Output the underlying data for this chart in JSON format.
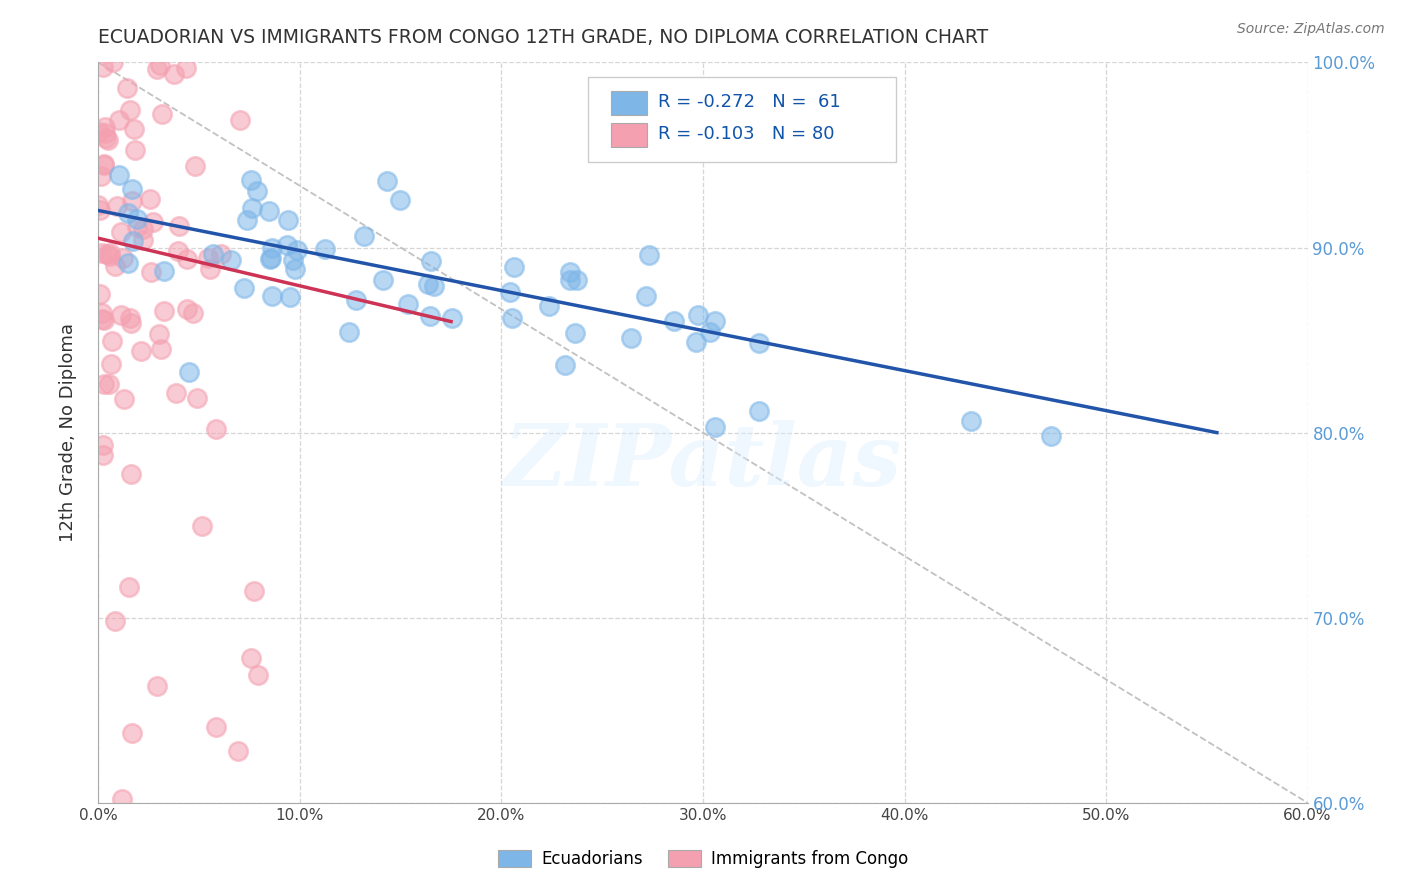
{
  "title": "ECUADORIAN VS IMMIGRANTS FROM CONGO 12TH GRADE, NO DIPLOMA CORRELATION CHART",
  "source": "Source: ZipAtlas.com",
  "ylabel": "12th Grade, No Diploma",
  "xlabel_blue": "Ecuadorians",
  "xlabel_pink": "Immigrants from Congo",
  "xlim": [
    0.0,
    0.6
  ],
  "ylim": [
    0.6,
    1.0
  ],
  "xticks": [
    0.0,
    0.1,
    0.2,
    0.3,
    0.4,
    0.5,
    0.6
  ],
  "yticks": [
    0.6,
    0.7,
    0.8,
    0.9,
    1.0
  ],
  "R_blue": -0.272,
  "N_blue": 61,
  "R_pink": -0.103,
  "N_pink": 80,
  "blue_color": "#7EB6E8",
  "pink_color": "#F4A0B0",
  "blue_line_color": "#2255AA",
  "pink_line_color": "#CC3355",
  "watermark": "ZIPatlas",
  "background_color": "#FFFFFF",
  "grid_color": "#CCCCCC",
  "blue_line_x0": 0.0,
  "blue_line_x1": 0.555,
  "blue_line_y0": 0.92,
  "blue_line_y1": 0.8,
  "pink_line_x0": 0.0,
  "pink_line_x1": 0.175,
  "pink_line_y0": 0.905,
  "pink_line_y1": 0.86
}
